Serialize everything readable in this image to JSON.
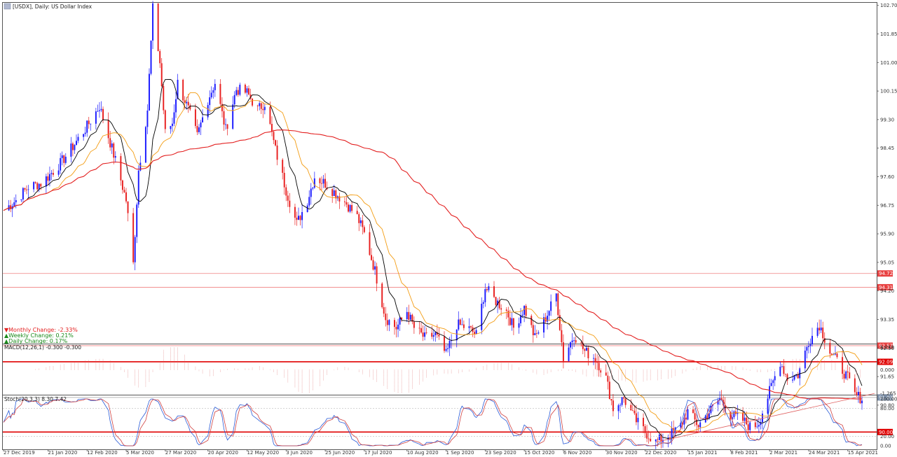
{
  "chart_data": {
    "type": "candlestick",
    "title": "[USDX], Daily: US Dollar Index",
    "symbol": "USDX",
    "timeframe": "Daily",
    "instrument": "US Dollar Index",
    "ylim": [
      89.0,
      103.4
    ],
    "y_ticks": [
      "102.70",
      "101.85",
      "101.00",
      "100.15",
      "99.30",
      "98.45",
      "97.60",
      "96.75",
      "95.90",
      "95.05",
      "94.20",
      "93.35",
      "92.50",
      "91.65",
      "90.80"
    ],
    "x_ticks": [
      "27 Dec 2019",
      "21 Jan 2020",
      "12 Feb 2020",
      "5 Mar 2020",
      "27 Mar 2020",
      "20 Apr 2020",
      "12 May 2020",
      "3 Jun 2020",
      "25 Jun 2020",
      "17 Jul 2020",
      "10 Aug 2020",
      "1 Sep 2020",
      "23 Sep 2020",
      "15 Oct 2020",
      "6 Nov 2020",
      "30 Nov 2020",
      "22 Dec 2020",
      "15 Jan 2021",
      "8 Feb 2021",
      "2 Mar 2021",
      "24 Mar 2021",
      "15 Apr 2021"
    ],
    "horizontal_levels": [
      {
        "value": 94.72,
        "label": "94.72",
        "color": "#f08080",
        "bold": false
      },
      {
        "value": 94.31,
        "label": "94.31",
        "color": "#f08080",
        "bold": false
      },
      {
        "value": 92.57,
        "label": "92.57",
        "color": "#f08080",
        "bold": false
      },
      {
        "value": 92.09,
        "label": "92.09",
        "color": "#e00000",
        "bold": true
      },
      {
        "value": 90.0,
        "label": "90.00",
        "color": "#e00000",
        "bold": true
      }
    ],
    "current_price": {
      "value": 91.03,
      "label": "91.03"
    },
    "trendline": {
      "from": {
        "x": "28 Dec 2020",
        "y": 89.7
      },
      "to": {
        "x": "23 Apr 2021",
        "y": 91.1
      }
    },
    "close_path": [
      [
        "27 Dec 2019",
        96.6
      ],
      [
        "3 Jan 2020",
        96.9
      ],
      [
        "10 Jan 2020",
        97.3
      ],
      [
        "17 Jan 2020",
        97.4
      ],
      [
        "21 Jan 2020",
        97.6
      ],
      [
        "28 Jan 2020",
        98.0
      ],
      [
        "4 Feb 2020",
        98.5
      ],
      [
        "12 Feb 2020",
        99.1
      ],
      [
        "19 Feb 2020",
        99.7
      ],
      [
        "24 Feb 2020",
        98.8
      ],
      [
        "29 Feb 2020",
        97.9
      ],
      [
        "5 Mar 2020",
        96.9
      ],
      [
        "9 Mar 2020",
        95.0
      ],
      [
        "12 Mar 2020",
        97.8
      ],
      [
        "17 Mar 2020",
        99.6
      ],
      [
        "20 Mar 2020",
        102.6
      ],
      [
        "24 Mar 2020",
        101.0
      ],
      [
        "27 Mar 2020",
        98.9
      ],
      [
        "31 Mar 2020",
        99.2
      ],
      [
        "3 Apr 2020",
        100.4
      ],
      [
        "9 Apr 2020",
        99.6
      ],
      [
        "14 Apr 2020",
        98.8
      ],
      [
        "20 Apr 2020",
        99.9
      ],
      [
        "24 Apr 2020",
        100.4
      ],
      [
        "30 Apr 2020",
        99.0
      ],
      [
        "6 May 2020",
        100.2
      ],
      [
        "12 May 2020",
        100.1
      ],
      [
        "18 May 2020",
        99.6
      ],
      [
        "22 May 2020",
        99.8
      ],
      [
        "28 May 2020",
        98.4
      ],
      [
        "3 Jun 2020",
        97.2
      ],
      [
        "9 Jun 2020",
        96.2
      ],
      [
        "15 Jun 2020",
        96.9
      ],
      [
        "19 Jun 2020",
        97.6
      ],
      [
        "25 Jun 2020",
        97.4
      ],
      [
        "1 Jul 2020",
        97.1
      ],
      [
        "7 Jul 2020",
        96.8
      ],
      [
        "13 Jul 2020",
        96.4
      ],
      [
        "17 Jul 2020",
        95.9
      ],
      [
        "23 Jul 2020",
        94.8
      ],
      [
        "29 Jul 2020",
        93.4
      ],
      [
        "4 Aug 2020",
        93.1
      ],
      [
        "10 Aug 2020",
        93.6
      ],
      [
        "14 Aug 2020",
        93.1
      ],
      [
        "20 Aug 2020",
        92.8
      ],
      [
        "26 Aug 2020",
        92.9
      ],
      [
        "1 Sep 2020",
        92.3
      ],
      [
        "7 Sep 2020",
        93.2
      ],
      [
        "13 Sep 2020",
        93.1
      ],
      [
        "18 Sep 2020",
        92.9
      ],
      [
        "23 Sep 2020",
        94.3
      ],
      [
        "29 Sep 2020",
        93.9
      ],
      [
        "5 Oct 2020",
        93.6
      ],
      [
        "9 Oct 2020",
        93.1
      ],
      [
        "15 Oct 2020",
        93.7
      ],
      [
        "21 Oct 2020",
        92.8
      ],
      [
        "27 Oct 2020",
        93.4
      ],
      [
        "2 Nov 2020",
        94.1
      ],
      [
        "6 Nov 2020",
        92.2
      ],
      [
        "12 Nov 2020",
        92.9
      ],
      [
        "18 Nov 2020",
        92.4
      ],
      [
        "24 Nov 2020",
        92.2
      ],
      [
        "30 Nov 2020",
        91.6
      ],
      [
        "4 Dec 2020",
        90.7
      ],
      [
        "10 Dec 2020",
        91.0
      ],
      [
        "16 Dec 2020",
        90.4
      ],
      [
        "22 Dec 2020",
        90.0
      ],
      [
        "28 Dec 2020",
        89.7
      ],
      [
        "4 Jan 2021",
        89.9
      ],
      [
        "10 Jan 2021",
        90.1
      ],
      [
        "15 Jan 2021",
        90.6
      ],
      [
        "21 Jan 2021",
        90.2
      ],
      [
        "27 Jan 2021",
        90.6
      ],
      [
        "2 Feb 2021",
        91.0
      ],
      [
        "8 Feb 2021",
        90.5
      ],
      [
        "14 Feb 2021",
        90.4
      ],
      [
        "20 Feb 2021",
        90.1
      ],
      [
        "24 Feb 2021",
        90.3
      ],
      [
        "2 Mar 2021",
        91.2
      ],
      [
        "8 Mar 2021",
        92.1
      ],
      [
        "12 Mar 2021",
        91.6
      ],
      [
        "18 Mar 2021",
        91.7
      ],
      [
        "24 Mar 2021",
        92.7
      ],
      [
        "30 Mar 2021",
        93.2
      ],
      [
        "5 Apr 2021",
        92.4
      ],
      [
        "9 Apr 2021",
        92.1
      ],
      [
        "15 Apr 2021",
        91.6
      ],
      [
        "19 Apr 2021",
        91.1
      ],
      [
        "23 Apr 2021",
        91.0
      ]
    ],
    "overlays": [
      {
        "name": "fast_ma",
        "color": "#000000"
      },
      {
        "name": "mid_ma",
        "color": "#f39c12"
      },
      {
        "name": "slow_ma",
        "color": "#e32020"
      }
    ],
    "candle_colors": {
      "up": "#1a1aff",
      "down": "#e82020"
    },
    "change_info": [
      {
        "label": "▼Monthly Change: -2.33%",
        "color": "#e32020"
      },
      {
        "label": "▲Weekly Change: 0.21%",
        "color": "#1a8a1a"
      },
      {
        "label": "▲Daily Change: 0.17%",
        "color": "#1a8a1a"
      }
    ],
    "macd": {
      "label": "MACD(12,26,1) -0.300 -0.300",
      "y_ticks": [
        "1.219",
        "0.000",
        "-1.265"
      ],
      "ylim": [
        -1.265,
        1.219
      ],
      "up_color": "#e08080",
      "down_color": "#e08080"
    },
    "stoch": {
      "label": "Stoch(20,3,3) 8.30 7.42",
      "y_ticks": [
        "100.00",
        "80.00",
        "20.00",
        "0.00"
      ],
      "ylim": [
        0,
        100
      ],
      "main_color": "#2a5bd7",
      "signal_color": "#d04040"
    }
  }
}
